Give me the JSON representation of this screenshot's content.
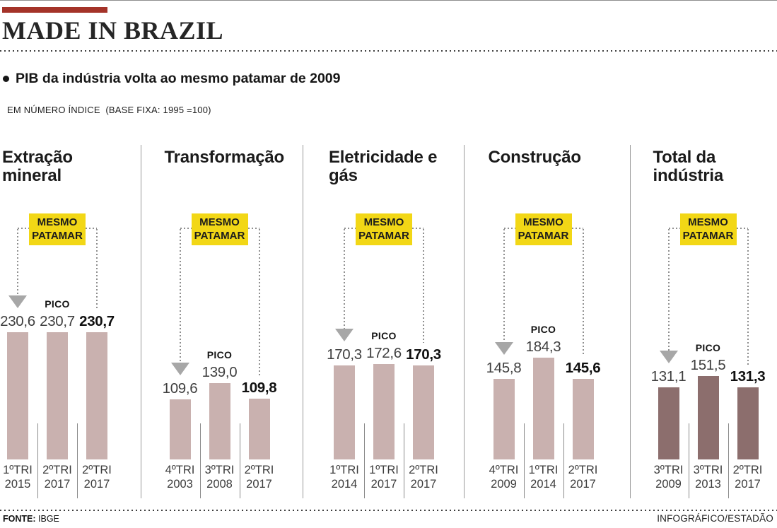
{
  "header": {
    "title": "MADE IN BRAZIL",
    "headline": "PIB da indústria volta ao mesmo patamar de 2009",
    "unit_note": "EM NÚMERO ÍNDICE  (BASE FIXA: 1995 =100)"
  },
  "labels": {
    "badge": "MESMO PATAMAR",
    "pico": "PICO"
  },
  "colors": {
    "accent_red": "#a43329",
    "badge_yellow": "#f2d716",
    "bar_light": "#c9b1af",
    "bar_dark": "#8c6e6d",
    "arrow_gray": "#a7a7a7"
  },
  "footer": {
    "source_label": "FONTE:",
    "source": "IBGE",
    "credit": "INFOGRÁFICO/ESTADÃO"
  },
  "chart_data": {
    "type": "bar",
    "title": "PIB da indústria volta ao mesmo patamar de 2009",
    "ylabel": "Número índice (base fixa: 1995 = 100)",
    "ylim": [
      0,
      240
    ],
    "grid": false,
    "legend_position": "none",
    "panels": [
      {
        "title": "Extração mineral",
        "bar_color": "#c9b1af",
        "bars": [
          {
            "period": "1ºTRI",
            "year": "2015",
            "value": 230.6,
            "display": "230,6",
            "bold": false,
            "pico": false
          },
          {
            "period": "2ºTRI",
            "year": "2017",
            "value": 230.7,
            "display": "230,7",
            "bold": false,
            "pico": true
          },
          {
            "period": "2ºTRI",
            "year": "2017",
            "value": 230.7,
            "display": "230,7",
            "bold": true,
            "pico": false
          }
        ]
      },
      {
        "title": "Transformação",
        "bar_color": "#c9b1af",
        "bars": [
          {
            "period": "4ºTRI",
            "year": "2003",
            "value": 109.6,
            "display": "109,6",
            "bold": false,
            "pico": false
          },
          {
            "period": "3ºTRI",
            "year": "2008",
            "value": 139.0,
            "display": "139,0",
            "bold": false,
            "pico": true
          },
          {
            "period": "2ºTRI",
            "year": "2017",
            "value": 109.8,
            "display": "109,8",
            "bold": true,
            "pico": false
          }
        ]
      },
      {
        "title": "Eletricidade e gás",
        "bar_color": "#c9b1af",
        "bars": [
          {
            "period": "1ºTRI",
            "year": "2014",
            "value": 170.3,
            "display": "170,3",
            "bold": false,
            "pico": false
          },
          {
            "period": "1ºTRI",
            "year": "2017",
            "value": 172.6,
            "display": "172,6",
            "bold": false,
            "pico": true
          },
          {
            "period": "2ºTRI",
            "year": "2017",
            "value": 170.3,
            "display": "170,3",
            "bold": true,
            "pico": false
          }
        ]
      },
      {
        "title": "Construção",
        "bar_color": "#c9b1af",
        "bars": [
          {
            "period": "4ºTRI",
            "year": "2009",
            "value": 145.8,
            "display": "145,8",
            "bold": false,
            "pico": false
          },
          {
            "period": "1ºTRI",
            "year": "2014",
            "value": 184.3,
            "display": "184,3",
            "bold": false,
            "pico": true
          },
          {
            "period": "2ºTRI",
            "year": "2017",
            "value": 145.6,
            "display": "145,6",
            "bold": true,
            "pico": false
          }
        ]
      },
      {
        "title": "Total da indústria",
        "bar_color": "#8c6e6d",
        "bars": [
          {
            "period": "3ºTRI",
            "year": "2009",
            "value": 131.1,
            "display": "131,1",
            "bold": false,
            "pico": false
          },
          {
            "period": "3ºTRI",
            "year": "2013",
            "value": 151.5,
            "display": "151,5",
            "bold": false,
            "pico": true
          },
          {
            "period": "2ºTRI",
            "year": "2017",
            "value": 131.3,
            "display": "131,3",
            "bold": true,
            "pico": false
          }
        ]
      }
    ]
  }
}
